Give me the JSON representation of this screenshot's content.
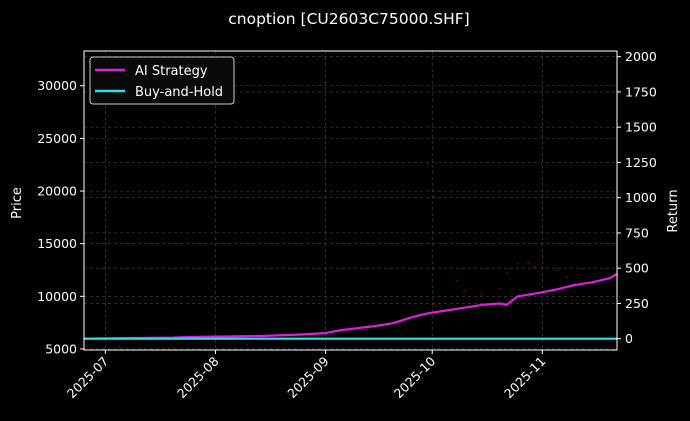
{
  "chart_data": {
    "type": "line",
    "title": "cnoption [CU2603C75000.SHF]",
    "left_axis": {
      "label": "Price",
      "ylim": [
        4900,
        33300
      ],
      "ticks": [
        5000,
        10000,
        15000,
        20000,
        25000,
        30000
      ],
      "tick_labels": [
        "5000",
        "10000",
        "15000",
        "20000",
        "25000",
        "30000"
      ]
    },
    "right_axis": {
      "label": "Return",
      "ylim": [
        -80,
        2040
      ],
      "ticks": [
        0,
        250,
        500,
        750,
        1000,
        1250,
        1500,
        1750,
        2000
      ],
      "tick_labels": [
        "0",
        "250",
        "500",
        "750",
        "1000",
        "1250",
        "1500",
        "1750",
        "2000"
      ]
    },
    "x_axis": {
      "type": "date",
      "range": [
        "2025-06-25",
        "2025-11-22"
      ],
      "ticks": [
        "2025-07-01",
        "2025-08-01",
        "2025-09-01",
        "2025-10-01",
        "2025-11-01"
      ],
      "tick_labels": [
        "2025-07",
        "2025-08",
        "2025-09",
        "2025-10",
        "2025-11"
      ]
    },
    "grid": true,
    "legend": {
      "position": "top-left",
      "entries": [
        "AI Strategy",
        "Buy-and-Hold"
      ]
    },
    "series": [
      {
        "name": "AI Strategy",
        "axis": "right",
        "color": "#e01de0",
        "x": [
          "2025-06-25",
          "2025-07-01",
          "2025-07-10",
          "2025-07-20",
          "2025-07-25",
          "2025-08-01",
          "2025-08-15",
          "2025-08-25",
          "2025-09-01",
          "2025-09-05",
          "2025-09-10",
          "2025-09-15",
          "2025-09-20",
          "2025-09-25",
          "2025-09-28",
          "2025-10-01",
          "2025-10-05",
          "2025-10-10",
          "2025-10-15",
          "2025-10-20",
          "2025-10-22",
          "2025-10-25",
          "2025-10-30",
          "2025-11-01",
          "2025-11-05",
          "2025-11-10",
          "2025-11-15",
          "2025-11-20",
          "2025-11-22"
        ],
        "values": [
          0,
          2,
          5,
          8,
          12,
          15,
          20,
          30,
          40,
          60,
          75,
          90,
          110,
          150,
          170,
          185,
          200,
          220,
          240,
          250,
          240,
          300,
          320,
          330,
          350,
          380,
          400,
          430,
          460
        ]
      },
      {
        "name": "Buy-and-Hold",
        "axis": "right",
        "color": "#2de0ec",
        "x": [
          "2025-06-25",
          "2025-11-22"
        ],
        "values": [
          0,
          0
        ]
      }
    ],
    "scatter": {
      "name": "Price",
      "axis": "left",
      "color": "#8b0000",
      "x": [
        "2025-07-05",
        "2025-07-20",
        "2025-08-10",
        "2025-09-20",
        "2025-10-01",
        "2025-10-08",
        "2025-10-10",
        "2025-10-15",
        "2025-10-20",
        "2025-10-22",
        "2025-10-25",
        "2025-10-28",
        "2025-10-30",
        "2025-11-05",
        "2025-11-08",
        "2025-11-12"
      ],
      "values": [
        5200,
        5100,
        5400,
        7500,
        9200,
        11500,
        10500,
        10200,
        10700,
        12200,
        13100,
        13200,
        12800,
        12500,
        11800,
        12600
      ]
    }
  }
}
